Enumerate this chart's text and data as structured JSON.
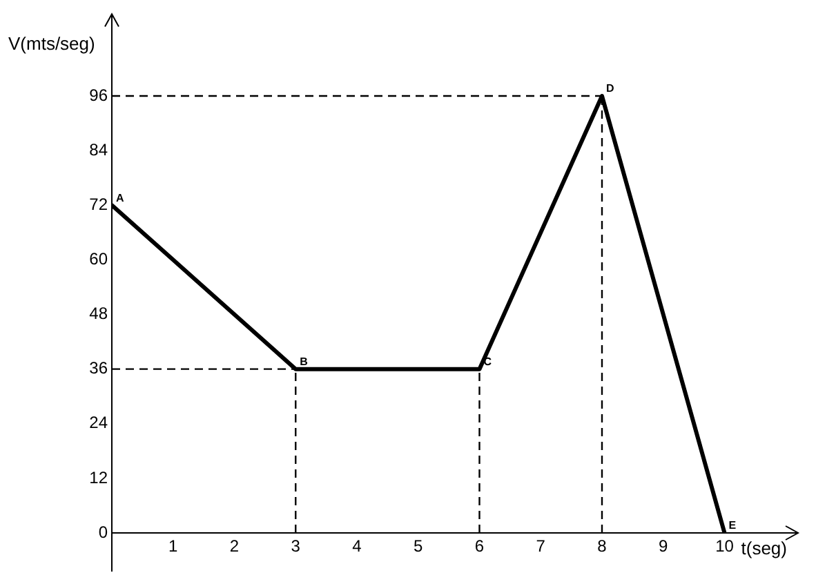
{
  "chart_data": {
    "type": "line",
    "xlabel": "t(seg)",
    "ylabel": "V(mts/seg)",
    "x": [
      0,
      3,
      6,
      8,
      10
    ],
    "series": [
      {
        "color": "#000000",
        "values": [
          72,
          36,
          36,
          96,
          0
        ]
      }
    ],
    "xlim": [
      0,
      11.2
    ],
    "ylim": [
      0,
      114
    ],
    "xticks": [
      1,
      2,
      3,
      4,
      5,
      6,
      7,
      8,
      9,
      10
    ],
    "yticks": [
      0,
      12,
      24,
      36,
      48,
      60,
      72,
      84,
      96
    ],
    "grid": false,
    "legend": false,
    "marker": "none",
    "line_style": "solid",
    "ref_lines": [
      {
        "axis": "y",
        "value": 96,
        "line_style": "dashed"
      },
      {
        "axis": "y",
        "value": 36,
        "line_style": "dashed"
      },
      {
        "axis": "x",
        "value": 3,
        "line_style": "dashed"
      },
      {
        "axis": "x",
        "value": 6,
        "line_style": "dashed"
      },
      {
        "axis": "x",
        "value": 8,
        "line_style": "dashed"
      }
    ],
    "annotations": [
      {
        "text": "A",
        "x": 0,
        "y": 72
      },
      {
        "text": "B",
        "x": 3,
        "y": 36
      },
      {
        "text": "C",
        "x": 6,
        "y": 36
      },
      {
        "text": "D",
        "x": 8,
        "y": 96
      },
      {
        "text": "E",
        "x": 10,
        "y": 0
      }
    ]
  }
}
